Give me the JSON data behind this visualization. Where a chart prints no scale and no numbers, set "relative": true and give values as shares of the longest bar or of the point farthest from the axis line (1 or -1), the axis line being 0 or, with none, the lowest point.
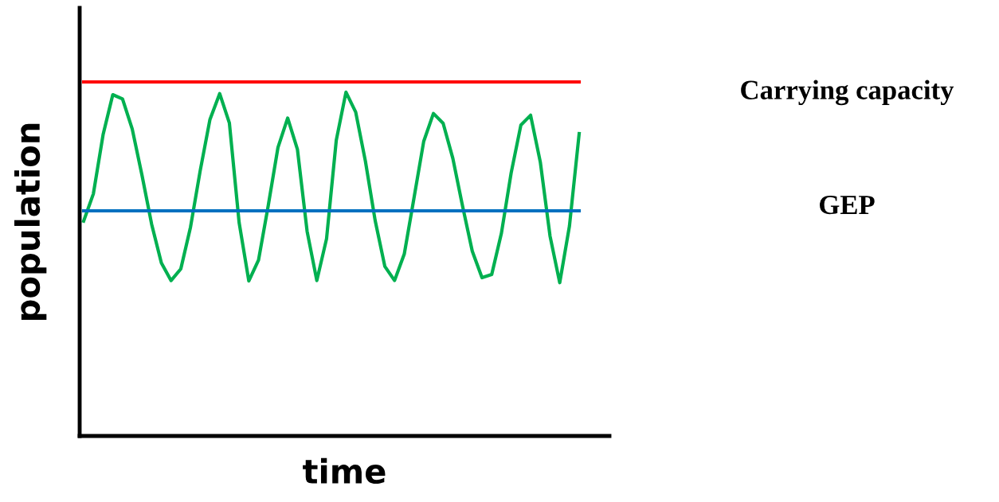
{
  "chart_data": {
    "type": "line",
    "relative": true,
    "xlabel": "time",
    "ylabel": "population",
    "categories": [
      null,
      null,
      null,
      null,
      null,
      null,
      null,
      null,
      null,
      null,
      null,
      null,
      null,
      null,
      null,
      null,
      null,
      null,
      null,
      null,
      null,
      null,
      null,
      null,
      null,
      null,
      null,
      null,
      null,
      null,
      null,
      null,
      null,
      null,
      null,
      null,
      null,
      null,
      null,
      null,
      null,
      null,
      null,
      null,
      null,
      null,
      null,
      null,
      null,
      null,
      null,
      null
    ],
    "series": [
      {
        "color": "#00b050",
        "values": [
          0.607,
          0.684,
          0.851,
          0.964,
          0.952,
          0.867,
          0.737,
          0.598,
          0.489,
          0.439,
          0.472,
          0.59,
          0.75,
          0.894,
          0.967,
          0.884,
          0.603,
          0.438,
          0.497,
          0.651,
          0.815,
          0.898,
          0.81,
          0.578,
          0.439,
          0.557,
          0.835,
          0.971,
          0.915,
          0.776,
          0.609,
          0.479,
          0.439,
          0.514,
          0.672,
          0.832,
          0.911,
          0.883,
          0.784,
          0.649,
          0.522,
          0.447,
          0.456,
          0.573,
          0.743,
          0.878,
          0.906,
          0.774,
          0.565,
          0.433,
          0.593,
          0.854
        ]
      },
      {
        "name": "Carrying capacity",
        "color": "#ff0000",
        "values": [
          1,
          1,
          1,
          1,
          1,
          1,
          1,
          1,
          1,
          1,
          1,
          1,
          1,
          1,
          1,
          1,
          1,
          1,
          1,
          1,
          1,
          1,
          1,
          1,
          1,
          1,
          1,
          1,
          1,
          1,
          1,
          1,
          1,
          1,
          1,
          1,
          1,
          1,
          1,
          1,
          1,
          1,
          1,
          1,
          1,
          1,
          1,
          1,
          1,
          1,
          1,
          1
        ]
      },
      {
        "name": "GEP",
        "color": "#0070c0",
        "values": [
          0.636,
          0.636,
          0.636,
          0.636,
          0.636,
          0.636,
          0.636,
          0.636,
          0.636,
          0.636,
          0.636,
          0.636,
          0.636,
          0.636,
          0.636,
          0.636,
          0.636,
          0.636,
          0.636,
          0.636,
          0.636,
          0.636,
          0.636,
          0.636,
          0.636,
          0.636,
          0.636,
          0.636,
          0.636,
          0.636,
          0.636,
          0.636,
          0.636,
          0.636,
          0.636,
          0.636,
          0.636,
          0.636,
          0.636,
          0.636,
          0.636,
          0.636,
          0.636,
          0.636,
          0.636,
          0.636,
          0.636,
          0.636,
          0.636,
          0.636,
          0.636,
          0.636
        ]
      }
    ],
    "legend": false,
    "marker": "none",
    "line_style": "solid",
    "tick_labels": false
  }
}
